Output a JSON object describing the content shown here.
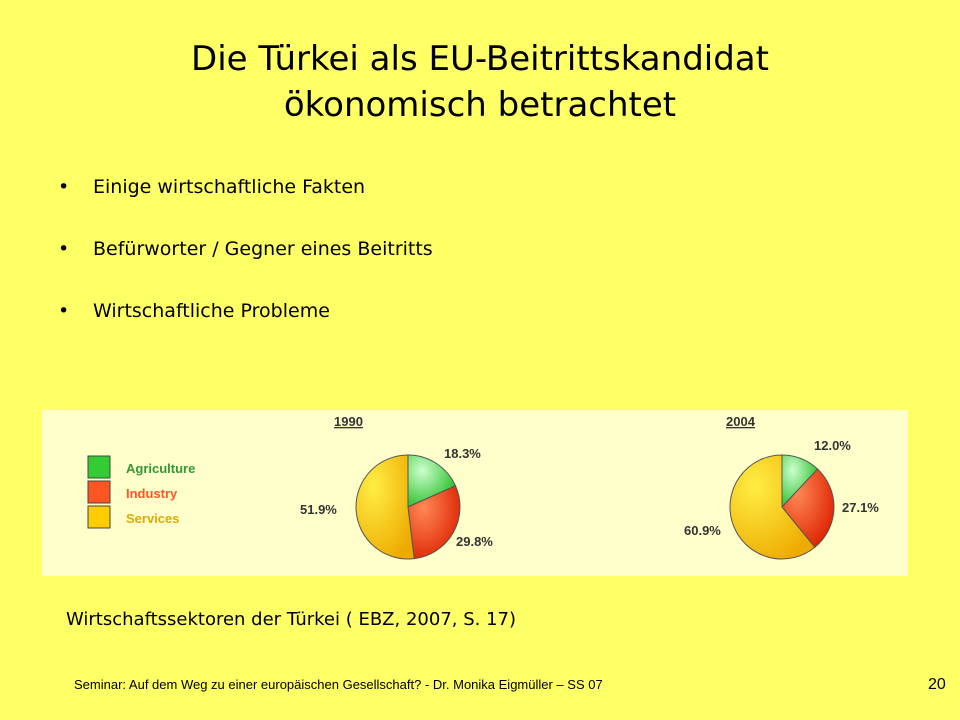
{
  "slide": {
    "title_line1": "Die Türkei als EU-Beitrittskandidat",
    "title_line2": "ökonomisch betrachtet",
    "bullets": [
      {
        "marker": "•",
        "text": "Einige wirtschaftliche Fakten"
      },
      {
        "marker": "•",
        "text": "Befürworter / Gegner eines Beitritts"
      },
      {
        "marker": "•",
        "text": "Wirtschaftliche Probleme"
      }
    ],
    "caption": "Wirtschaftssektoren der Türkei ( EBZ, 2007, S. 17)",
    "footer": "Seminar: Auf dem Weg zu einer europäischen Gesellschaft? - Dr. Monika Eigmüller – SS 07",
    "page_number": "20"
  },
  "chart_data": [
    {
      "type": "pie",
      "title": "1990",
      "categories": [
        "Agriculture",
        "Industry",
        "Services"
      ],
      "values": [
        18.3,
        29.8,
        51.9
      ],
      "labels": [
        "18.3%",
        "29.8%",
        "51.9%"
      ],
      "colors": [
        "#33CC33",
        "#FF4422",
        "#FFCC00"
      ],
      "legend": "left"
    },
    {
      "type": "pie",
      "title": "2004",
      "categories": [
        "Agriculture",
        "Industry",
        "Services"
      ],
      "values": [
        12.0,
        27.1,
        60.9
      ],
      "labels": [
        "12.0%",
        "27.1%",
        "60.9%"
      ],
      "colors": [
        "#33CC33",
        "#FF4422",
        "#FFCC00"
      ],
      "legend": "left"
    }
  ],
  "legend_items": [
    {
      "label": "Agriculture",
      "color": "#33CC33",
      "text_color": "#339933"
    },
    {
      "label": "Industry",
      "color": "#FF5522",
      "text_color": "#FF5522"
    },
    {
      "label": "Services",
      "color": "#FFCC00",
      "text_color": "#DDAA00"
    }
  ],
  "colors": {
    "background": "#FFFF66",
    "chart_panel": "#FFFFCC"
  }
}
